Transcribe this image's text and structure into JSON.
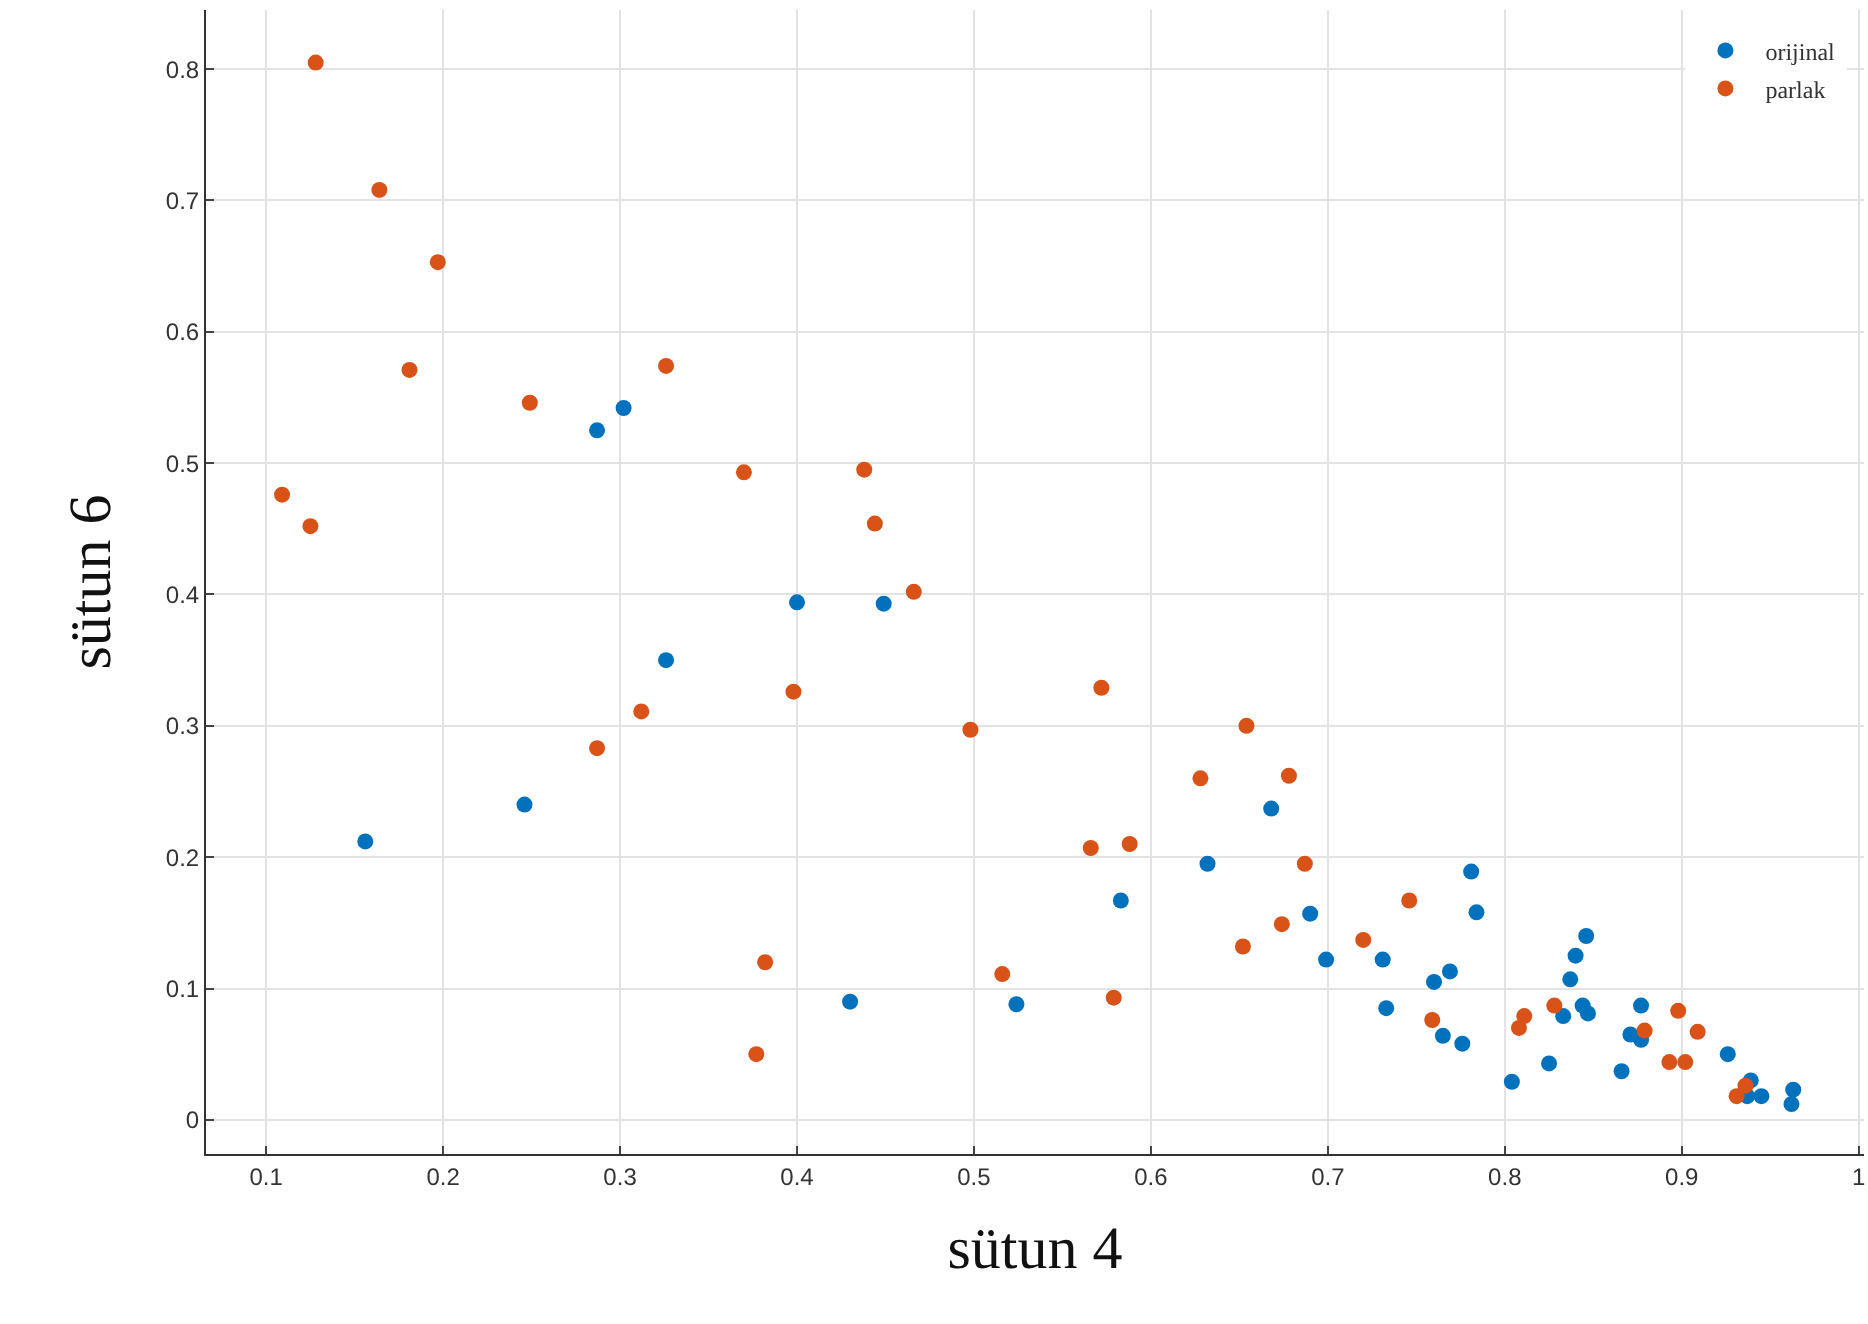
{
  "chart_data": {
    "type": "scatter",
    "xlabel": "sütun 4",
    "ylabel": "sütun 6",
    "xlim": [
      0.066,
      1.003
    ],
    "ylim": [
      -0.026,
      0.845
    ],
    "xticks": [
      0.1,
      0.2,
      0.3,
      0.4,
      0.5,
      0.6,
      0.7,
      0.8,
      0.9,
      1
    ],
    "yticks": [
      0,
      0.1,
      0.2,
      0.3,
      0.4,
      0.5,
      0.6,
      0.7,
      0.8
    ],
    "grid": true,
    "legend": "top right",
    "marker": "circle",
    "series": [
      {
        "name": "orijinal",
        "color": "#0072bd",
        "x": [
          0.156,
          0.246,
          0.287,
          0.302,
          0.326,
          0.4,
          0.449,
          0.43,
          0.524,
          0.583,
          0.632,
          0.668,
          0.69,
          0.699,
          0.731,
          0.733,
          0.76,
          0.769,
          0.765,
          0.776,
          0.781,
          0.784,
          0.804,
          0.825,
          0.833,
          0.837,
          0.84,
          0.846,
          0.844,
          0.847,
          0.866,
          0.871,
          0.877,
          0.877,
          0.926,
          0.939,
          0.937,
          0.945,
          0.962,
          0.963
        ],
        "values": [
          0.212,
          0.24,
          0.525,
          0.542,
          0.35,
          0.394,
          0.393,
          0.09,
          0.088,
          0.167,
          0.195,
          0.237,
          0.157,
          0.122,
          0.122,
          0.085,
          0.105,
          0.113,
          0.064,
          0.058,
          0.189,
          0.158,
          0.029,
          0.043,
          0.079,
          0.107,
          0.125,
          0.14,
          0.087,
          0.081,
          0.037,
          0.065,
          0.061,
          0.087,
          0.05,
          0.03,
          0.018,
          0.018,
          0.012,
          0.023
        ]
      },
      {
        "name": "parlak",
        "color": "#d95319",
        "x": [
          0.128,
          0.164,
          0.197,
          0.181,
          0.109,
          0.125,
          0.249,
          0.326,
          0.37,
          0.438,
          0.444,
          0.466,
          0.287,
          0.312,
          0.398,
          0.498,
          0.382,
          0.377,
          0.516,
          0.572,
          0.566,
          0.588,
          0.579,
          0.628,
          0.654,
          0.678,
          0.687,
          0.674,
          0.652,
          0.72,
          0.746,
          0.759,
          0.808,
          0.811,
          0.828,
          0.879,
          0.898,
          0.909,
          0.893,
          0.902,
          0.931,
          0.936
        ],
        "values": [
          0.805,
          0.708,
          0.653,
          0.571,
          0.476,
          0.452,
          0.546,
          0.574,
          0.493,
          0.495,
          0.454,
          0.402,
          0.283,
          0.311,
          0.326,
          0.297,
          0.12,
          0.05,
          0.111,
          0.329,
          0.207,
          0.21,
          0.093,
          0.26,
          0.3,
          0.262,
          0.195,
          0.149,
          0.132,
          0.137,
          0.167,
          0.076,
          0.07,
          0.079,
          0.087,
          0.068,
          0.083,
          0.067,
          0.044,
          0.044,
          0.018,
          0.026
        ]
      }
    ]
  }
}
